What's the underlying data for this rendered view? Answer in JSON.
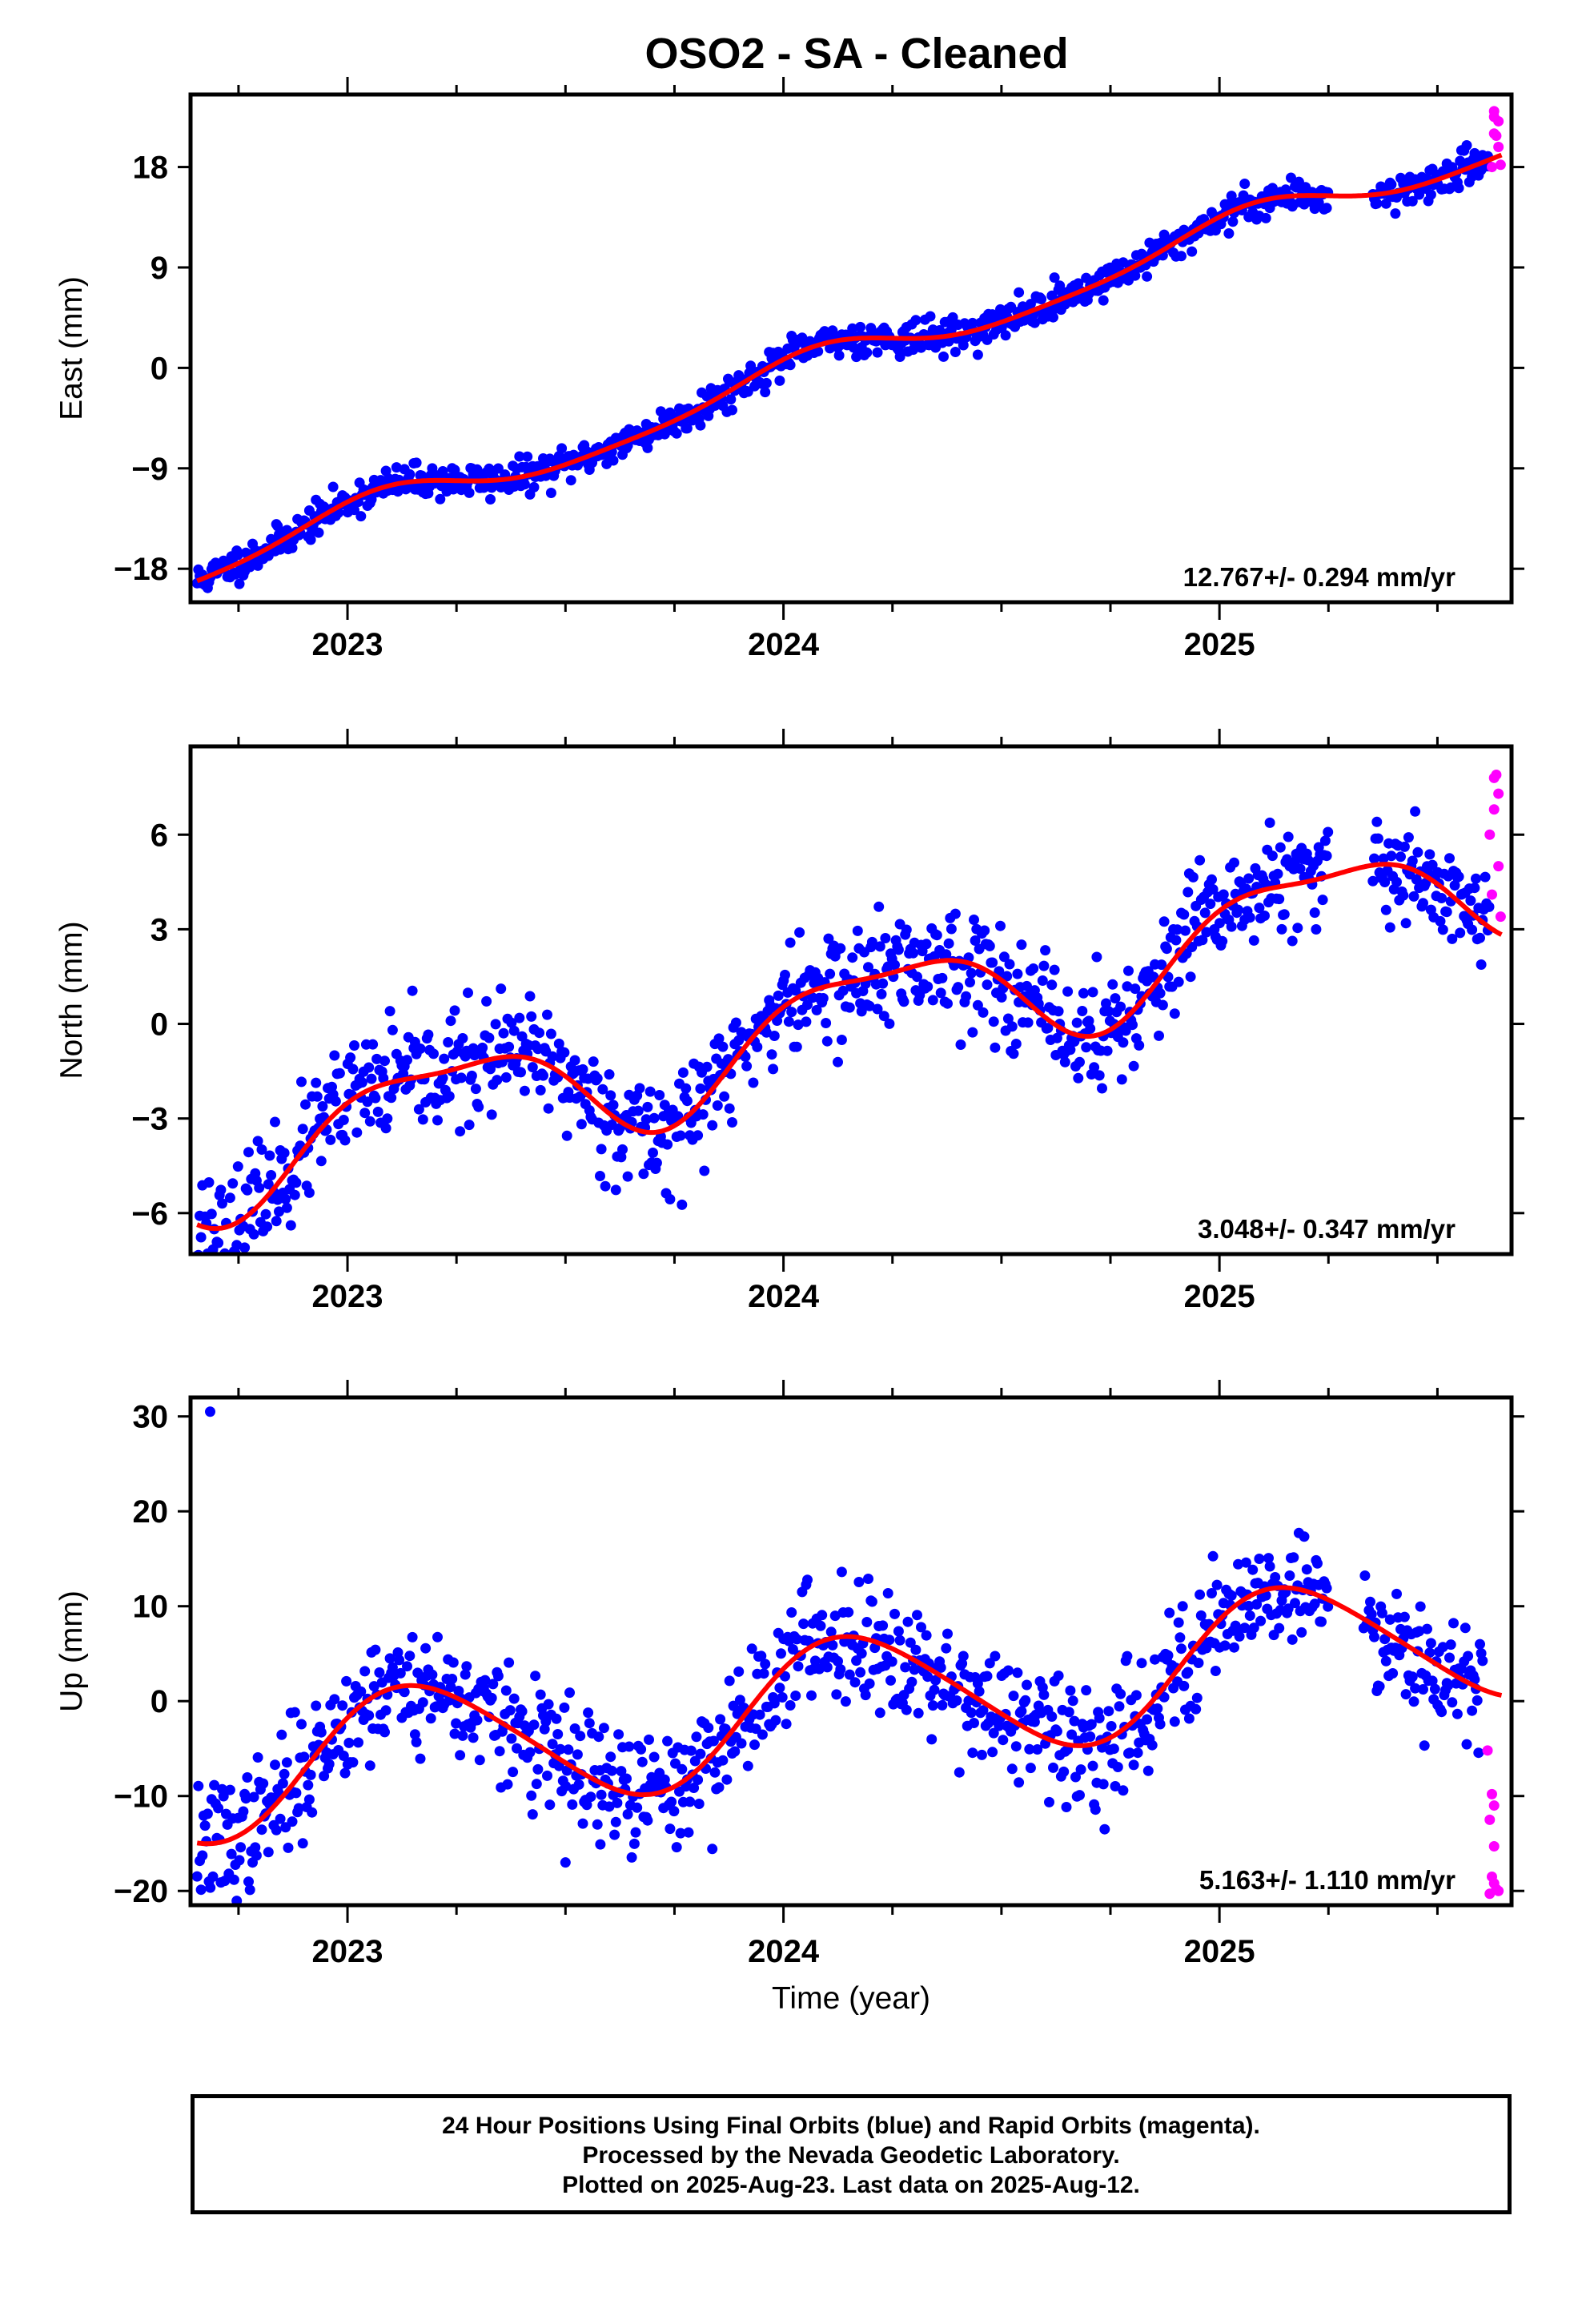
{
  "title": "OSO2  - SA - Cleaned",
  "xlabel": "Time (year)",
  "footer": {
    "line1": "24 Hour Positions Using Final Orbits (blue) and Rapid Orbits (magenta).",
    "line2": "Processed by the Nevada Geodetic Laboratory.",
    "line3": "Plotted on 2025-Aug-23. Last data on 2025-Aug-12."
  },
  "colors": {
    "final_orbits": "#0000ff",
    "rapid_orbits": "#ff00ff",
    "model": "#ff0000"
  },
  "chart_data": [
    {
      "type": "scatter",
      "ylabel": "East (mm)",
      "rate_label": "12.767+/- 0.294 mm/yr",
      "xlim": [
        2022.64,
        2025.67
      ],
      "ylim": [
        -21.0,
        24.5
      ],
      "yticks": [
        -18,
        -9,
        0,
        9,
        18
      ],
      "xticks": [
        2023,
        2024,
        2025
      ],
      "x_minor_tick_step": 0.25,
      "trend": {
        "rate": 12.767,
        "ref_year": 2024.0,
        "ref_value": -0.9
      },
      "seasonal": [
        {
          "amplitude": 1.6,
          "period": 1.0,
          "phase": 1.25
        },
        {
          "amplitude": 0.35,
          "period": 0.5,
          "phase": 0.4
        }
      ],
      "scatter_sd": 0.75,
      "gaps": [
        [
          2025.25,
          2025.35
        ]
      ],
      "rapid_points": [
        [
          2025.63,
          22.5
        ],
        [
          2025.63,
          21.0
        ],
        [
          2025.635,
          20.8
        ],
        [
          2025.64,
          19.8
        ],
        [
          2025.625,
          18.0
        ],
        [
          2025.645,
          18.2
        ],
        [
          2025.63,
          23.0
        ],
        [
          2025.64,
          22.1
        ]
      ],
      "points_per_year": 330,
      "seed": 11
    },
    {
      "type": "scatter",
      "ylabel": "North (mm)",
      "rate_label": "3.048+/- 0.347 mm/yr",
      "xlim": [
        2022.64,
        2025.67
      ],
      "ylim": [
        -7.3,
        8.8
      ],
      "yticks": [
        -6,
        -3,
        0,
        3,
        6
      ],
      "xticks": [
        2023,
        2024,
        2025
      ],
      "x_minor_tick_step": 0.25,
      "trend": {
        "rate": 3.048,
        "ref_year": 2024.0,
        "ref_value": -0.3
      },
      "seasonal": [
        {
          "amplitude": 1.7,
          "period": 1.0,
          "phase": 0.2
        },
        {
          "amplitude": 0.55,
          "period": 0.5,
          "phase": 2.0
        }
      ],
      "scatter_sd": 0.9,
      "gaps": [
        [
          2025.25,
          2025.35
        ]
      ],
      "rapid_points": [
        [
          2025.63,
          7.8
        ],
        [
          2025.64,
          7.3
        ],
        [
          2025.63,
          6.8
        ],
        [
          2025.62,
          6.0
        ],
        [
          2025.64,
          5.0
        ],
        [
          2025.625,
          4.1
        ],
        [
          2025.645,
          3.4
        ],
        [
          2025.635,
          7.9
        ]
      ],
      "points_per_year": 330,
      "seed": 23
    },
    {
      "type": "scatter",
      "ylabel": "Up (mm)",
      "rate_label": "5.163+/- 1.110 mm/yr",
      "xlim": [
        2022.64,
        2025.67
      ],
      "ylim": [
        -21.5,
        32.0
      ],
      "yticks": [
        -20,
        -10,
        0,
        10,
        20,
        30
      ],
      "xticks": [
        2023,
        2024,
        2025
      ],
      "x_minor_tick_step": 0.25,
      "trend": {
        "rate": 5.163,
        "ref_year": 2024.0,
        "ref_value": -1.0
      },
      "seasonal": [
        {
          "amplitude": 7.0,
          "period": 1.0,
          "phase": 0.55
        },
        {
          "amplitude": 0.8,
          "period": 0.5,
          "phase": 1.2
        }
      ],
      "scatter_sd": 3.2,
      "gaps": [
        [
          2025.25,
          2025.33
        ]
      ],
      "outliers": [
        [
          2022.685,
          30.5
        ],
        [
          2023.5,
          -17.0
        ],
        [
          2023.58,
          -15.1
        ]
      ],
      "rapid_points": [
        [
          2025.615,
          -5.2
        ],
        [
          2025.625,
          -9.8
        ],
        [
          2025.63,
          -11.0
        ],
        [
          2025.62,
          -12.5
        ],
        [
          2025.63,
          -15.3
        ],
        [
          2025.625,
          -18.5
        ],
        [
          2025.635,
          -19.8
        ],
        [
          2025.62,
          -20.3
        ],
        [
          2025.64,
          -20.0
        ],
        [
          2025.63,
          -19.2
        ]
      ],
      "points_per_year": 330,
      "seed": 37
    }
  ]
}
